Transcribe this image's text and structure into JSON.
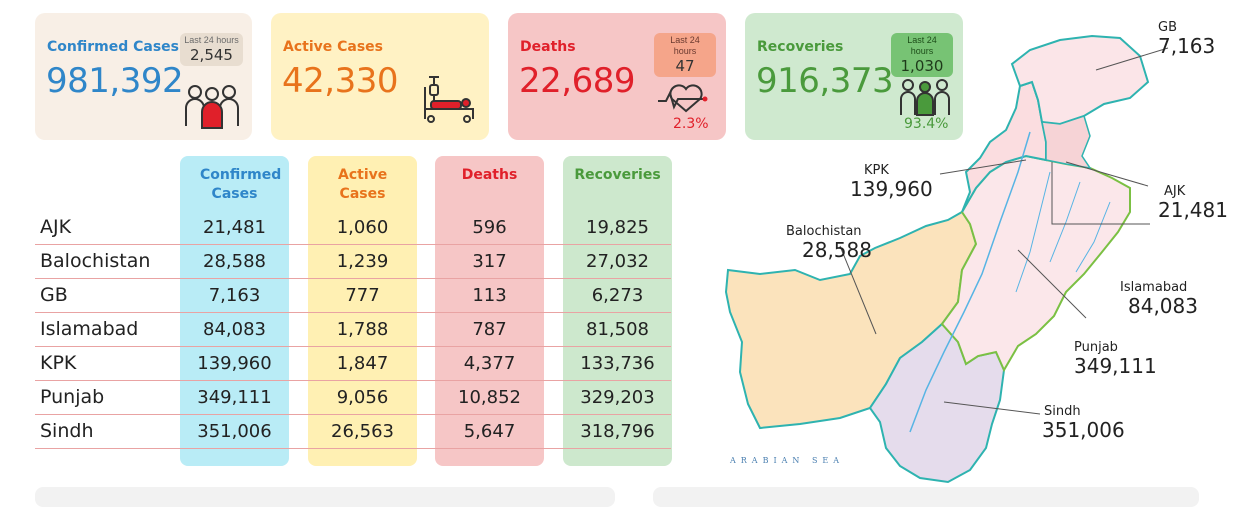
{
  "cards": {
    "confirmed": {
      "title": "Confirmed Cases",
      "value": "981,392",
      "badge_label": "Last 24 hours",
      "badge_value": "2,545",
      "icon": "people-group-icon"
    },
    "active": {
      "title": "Active Cases",
      "value": "42,330",
      "icon": "hospital-bed-icon"
    },
    "deaths": {
      "title": "Deaths",
      "value": "22,689",
      "badge_label": "Last 24 hours",
      "badge_value": "47",
      "pct": "2.3%",
      "icon": "heartbeat-icon"
    },
    "recoveries": {
      "title": "Recoveries",
      "value": "916,373",
      "badge_label": "Last 24 hours",
      "badge_value": "1,030",
      "pct": "93.4%",
      "icon": "recovered-people-icon"
    }
  },
  "table": {
    "headers": {
      "confirmed": "Confirmed Cases",
      "active": "Active Cases",
      "deaths": "Deaths",
      "recoveries": "Recoveries"
    },
    "rows": [
      {
        "name": "AJK",
        "confirmed": "21,481",
        "active": "1,060",
        "deaths": "596",
        "recoveries": "19,825"
      },
      {
        "name": "Balochistan",
        "confirmed": "28,588",
        "active": "1,239",
        "deaths": "317",
        "recoveries": "27,032"
      },
      {
        "name": "GB",
        "confirmed": "7,163",
        "active": "777",
        "deaths": "113",
        "recoveries": "6,273"
      },
      {
        "name": "Islamabad",
        "confirmed": "84,083",
        "active": "1,788",
        "deaths": "787",
        "recoveries": "81,508"
      },
      {
        "name": "KPK",
        "confirmed": "139,960",
        "active": "1,847",
        "deaths": "4,377",
        "recoveries": "133,736"
      },
      {
        "name": "Punjab",
        "confirmed": "349,111",
        "active": "9,056",
        "deaths": "10,852",
        "recoveries": "329,203"
      },
      {
        "name": "Sindh",
        "confirmed": "351,006",
        "active": "26,563",
        "deaths": "5,647",
        "recoveries": "318,796"
      }
    ]
  },
  "map": {
    "labels": {
      "gb": {
        "name": "GB",
        "value": "7,163"
      },
      "kpk": {
        "name": "KPK",
        "value": "139,960"
      },
      "ajk": {
        "name": "AJK",
        "value": "21,481"
      },
      "balochistan": {
        "name": "Balochistan",
        "value": "28,588"
      },
      "islamabad": {
        "name": "Islamabad",
        "value": "84,083"
      },
      "punjab": {
        "name": "Punjab",
        "value": "349,111"
      },
      "sindh": {
        "name": "Sindh",
        "value": "351,006"
      }
    },
    "sea_label": "ARABIAN SEA"
  },
  "colors": {
    "confirmed": "#2f86c9",
    "active": "#e8731c",
    "deaths": "#e0202a",
    "recoveries": "#4a9a3c",
    "confirmed_bg": "#f8efe6",
    "active_bg": "#fff2c4",
    "deaths_bg": "#f6c6c6",
    "recoveries_bg": "#cfe9cf"
  }
}
